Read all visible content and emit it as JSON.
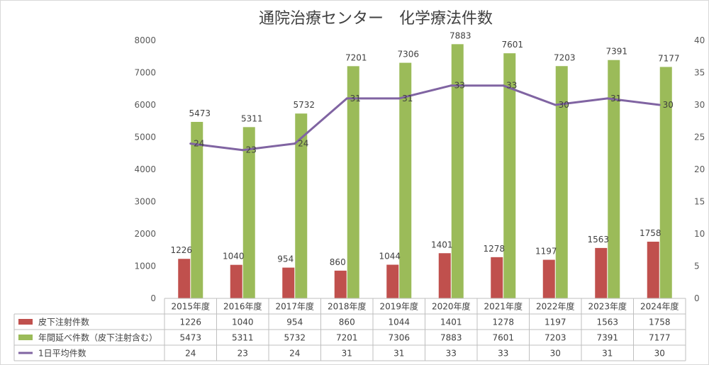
{
  "chart_data": {
    "type": "bar",
    "title": "通院治療センター　化学療法件数",
    "categories": [
      "2015年度",
      "2016年度",
      "2017年度",
      "2018年度",
      "2019年度",
      "2020年度",
      "2021年度",
      "2022年度",
      "2023年度",
      "2024年度"
    ],
    "y_left": {
      "min": 0,
      "max": 8000,
      "step": 1000,
      "ticks": [
        "0",
        "1000",
        "2000",
        "3000",
        "4000",
        "5000",
        "6000",
        "7000",
        "8000"
      ]
    },
    "y_right": {
      "min": 0,
      "max": 40,
      "step": 5,
      "ticks": [
        "0",
        "5",
        "10",
        "15",
        "20",
        "25",
        "30",
        "35",
        "40"
      ]
    },
    "grid": false,
    "legend": "table-bottom",
    "series": [
      {
        "name": "皮下注射件数",
        "type": "bar",
        "axis": "left",
        "color": "#C0504D",
        "values": [
          1226,
          1040,
          954,
          860,
          1044,
          1401,
          1278,
          1197,
          1563,
          1758
        ],
        "labels": [
          "1226",
          "1040",
          "954",
          "860",
          "1044",
          "1401",
          "1278",
          "1197",
          "1563",
          "1758"
        ]
      },
      {
        "name": "年間延べ件数（皮下注射含む）",
        "type": "bar",
        "axis": "left",
        "color": "#9BBB59",
        "values": [
          5473,
          5311,
          5732,
          7201,
          7306,
          7883,
          7601,
          7203,
          7391,
          7177
        ],
        "labels": [
          "5473",
          "5311",
          "5732",
          "7201",
          "7306",
          "7883",
          "7601",
          "7203",
          "7391",
          "7177"
        ]
      },
      {
        "name": "1日平均件数",
        "type": "line",
        "axis": "right",
        "color": "#8064A2",
        "values": [
          24,
          23,
          24,
          31,
          31,
          33,
          33,
          30,
          31,
          30
        ],
        "labels": [
          "24",
          "23",
          "24",
          "31",
          "31",
          "33",
          "33",
          "30",
          "31",
          "30"
        ]
      }
    ]
  }
}
